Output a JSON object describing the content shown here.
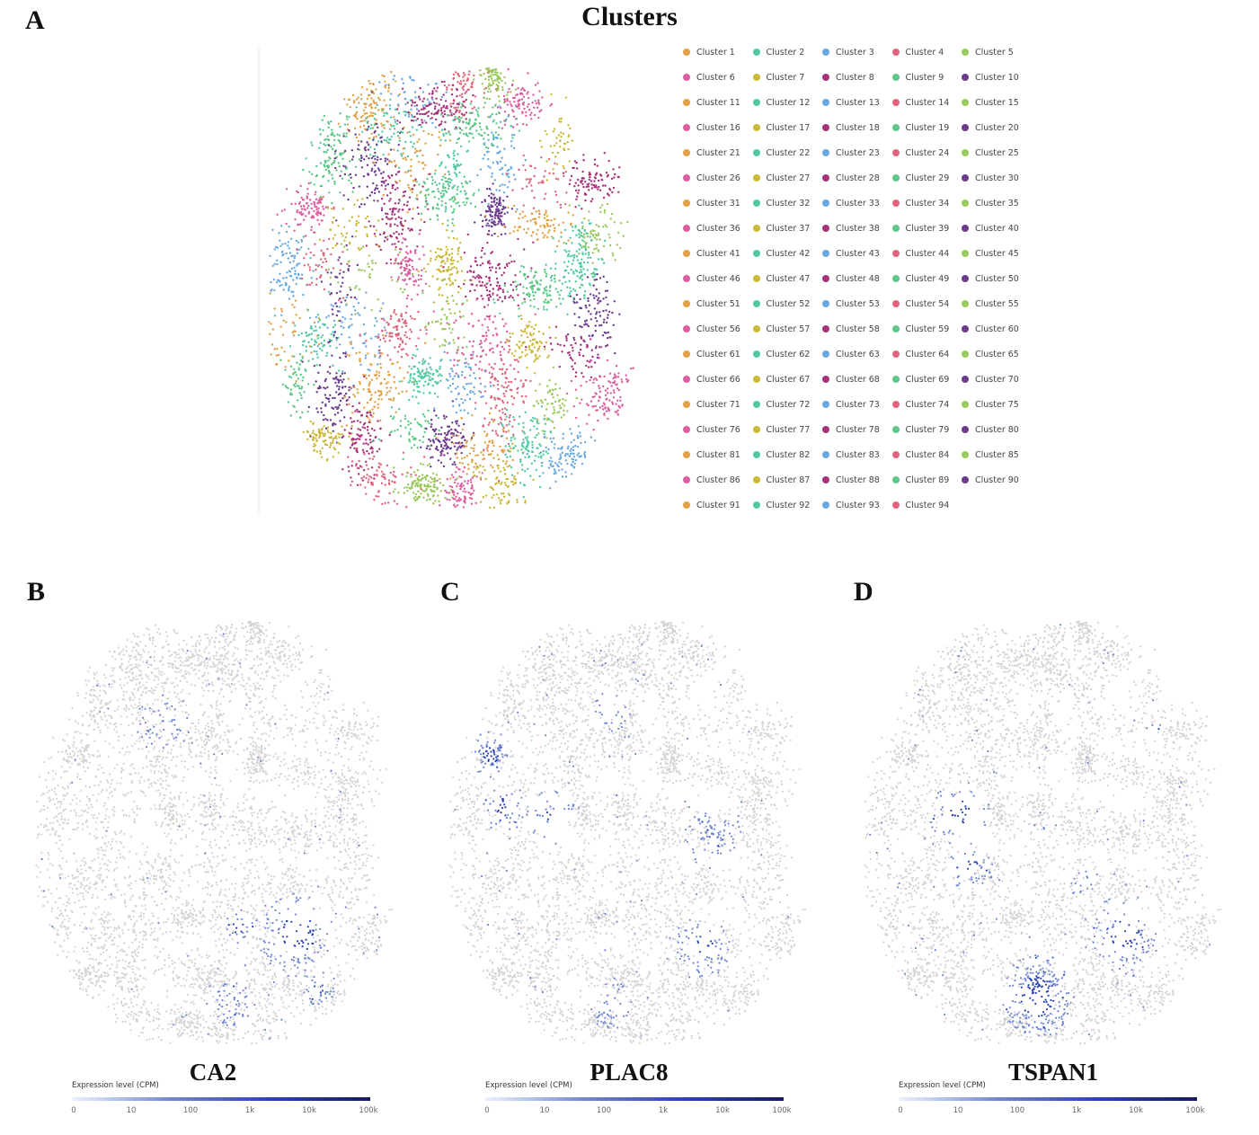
{
  "panels": {
    "a": "A",
    "b": "B",
    "c": "C",
    "d": "D"
  },
  "title": "Clusters",
  "legend": [
    "Cluster 1",
    "Cluster 2",
    "Cluster 3",
    "Cluster 4",
    "Cluster 5",
    "Cluster 6",
    "Cluster 7",
    "Cluster 8",
    "Cluster 9",
    "Cluster 10",
    "Cluster 11",
    "Cluster 12",
    "Cluster 13",
    "Cluster 14",
    "Cluster 15",
    "Cluster 16",
    "Cluster 17",
    "Cluster 18",
    "Cluster 19",
    "Cluster 20",
    "Cluster 21",
    "Cluster 22",
    "Cluster 23",
    "Cluster 24",
    "Cluster 25",
    "Cluster 26",
    "Cluster 27",
    "Cluster 28",
    "Cluster 29",
    "Cluster 30",
    "Cluster 31",
    "Cluster 32",
    "Cluster 33",
    "Cluster 34",
    "Cluster 35",
    "Cluster 36",
    "Cluster 37",
    "Cluster 38",
    "Cluster 39",
    "Cluster 40",
    "Cluster 41",
    "Cluster 42",
    "Cluster 43",
    "Cluster 44",
    "Cluster 45",
    "Cluster 46",
    "Cluster 47",
    "Cluster 48",
    "Cluster 49",
    "Cluster 50",
    "Cluster 51",
    "Cluster 52",
    "Cluster 53",
    "Cluster 54",
    "Cluster 55",
    "Cluster 56",
    "Cluster 57",
    "Cluster 58",
    "Cluster 59",
    "Cluster 60",
    "Cluster 61",
    "Cluster 62",
    "Cluster 63",
    "Cluster 64",
    "Cluster 65",
    "Cluster 66",
    "Cluster 67",
    "Cluster 68",
    "Cluster 69",
    "Cluster 70",
    "Cluster 71",
    "Cluster 72",
    "Cluster 73",
    "Cluster 74",
    "Cluster 75",
    "Cluster 76",
    "Cluster 77",
    "Cluster 78",
    "Cluster 79",
    "Cluster 80",
    "Cluster 81",
    "Cluster 82",
    "Cluster 83",
    "Cluster 84",
    "Cluster 85",
    "Cluster 86",
    "Cluster 87",
    "Cluster 88",
    "Cluster 89",
    "Cluster 90",
    "Cluster 91",
    "Cluster 92",
    "Cluster 93",
    "Cluster 94"
  ],
  "palette": [
    "#e0a043",
    "#4fcaa0",
    "#6aa8e0",
    "#e0657a",
    "#98c95a",
    "#de5fa0",
    "#ccb836",
    "#a8327a",
    "#5cc887",
    "#6b3b8e"
  ],
  "colorbar": {
    "title": "Expression level (CPM)",
    "ticks": [
      "0",
      "10",
      "100",
      "1k",
      "10k",
      "100k"
    ],
    "colors": [
      "#eaf2ff",
      "#6f86d6",
      "#2b43b5",
      "#16186b"
    ],
    "background_color": "#d3d3d3"
  },
  "chart_data": [
    {
      "type": "scatter",
      "title": "Clusters",
      "legend": "right",
      "series_count": 94
    },
    {
      "type": "scatter",
      "title": "CA2",
      "colorbar": "Expression level (CPM)",
      "high_expression_regions": [
        "lower-right",
        "bottom-center"
      ]
    },
    {
      "type": "scatter",
      "title": "PLAC8",
      "colorbar": "Expression level (CPM)",
      "high_expression_regions": [
        "upper-left",
        "center-left",
        "lower-right"
      ]
    },
    {
      "type": "scatter",
      "title": "TSPAN1",
      "colorbar": "Expression level (CPM)",
      "high_expression_regions": [
        "upper-left",
        "bottom-center",
        "lower-right"
      ]
    }
  ],
  "genes": {
    "b": "CA2",
    "c": "PLAC8",
    "d": "TSPAN1"
  }
}
